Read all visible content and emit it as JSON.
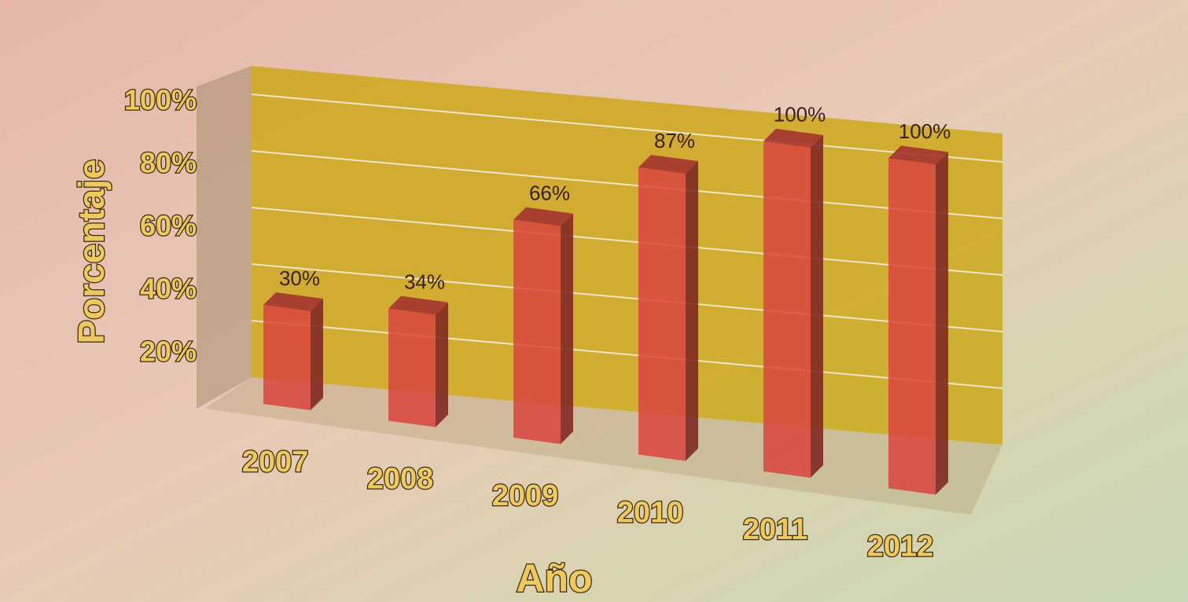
{
  "chart_data": {
    "type": "bar3d",
    "y_label": "Porcentaje",
    "x_label": "Año",
    "categories": [
      "2007",
      "2008",
      "2009",
      "2010",
      "2011",
      "2012"
    ],
    "values": [
      30,
      34,
      66,
      87,
      100,
      100
    ],
    "value_labels": [
      "30%",
      "34%",
      "66%",
      "87%",
      "100%",
      "100%"
    ],
    "color": "#d9443e",
    "ylim": [
      0,
      110
    ],
    "yticks": [
      {
        "value": 20,
        "label": "20%"
      },
      {
        "value": 40,
        "label": "40%"
      },
      {
        "value": 60,
        "label": "60%"
      },
      {
        "value": 80,
        "label": "80%"
      },
      {
        "value": 100,
        "label": "100%"
      }
    ],
    "grid": true
  }
}
